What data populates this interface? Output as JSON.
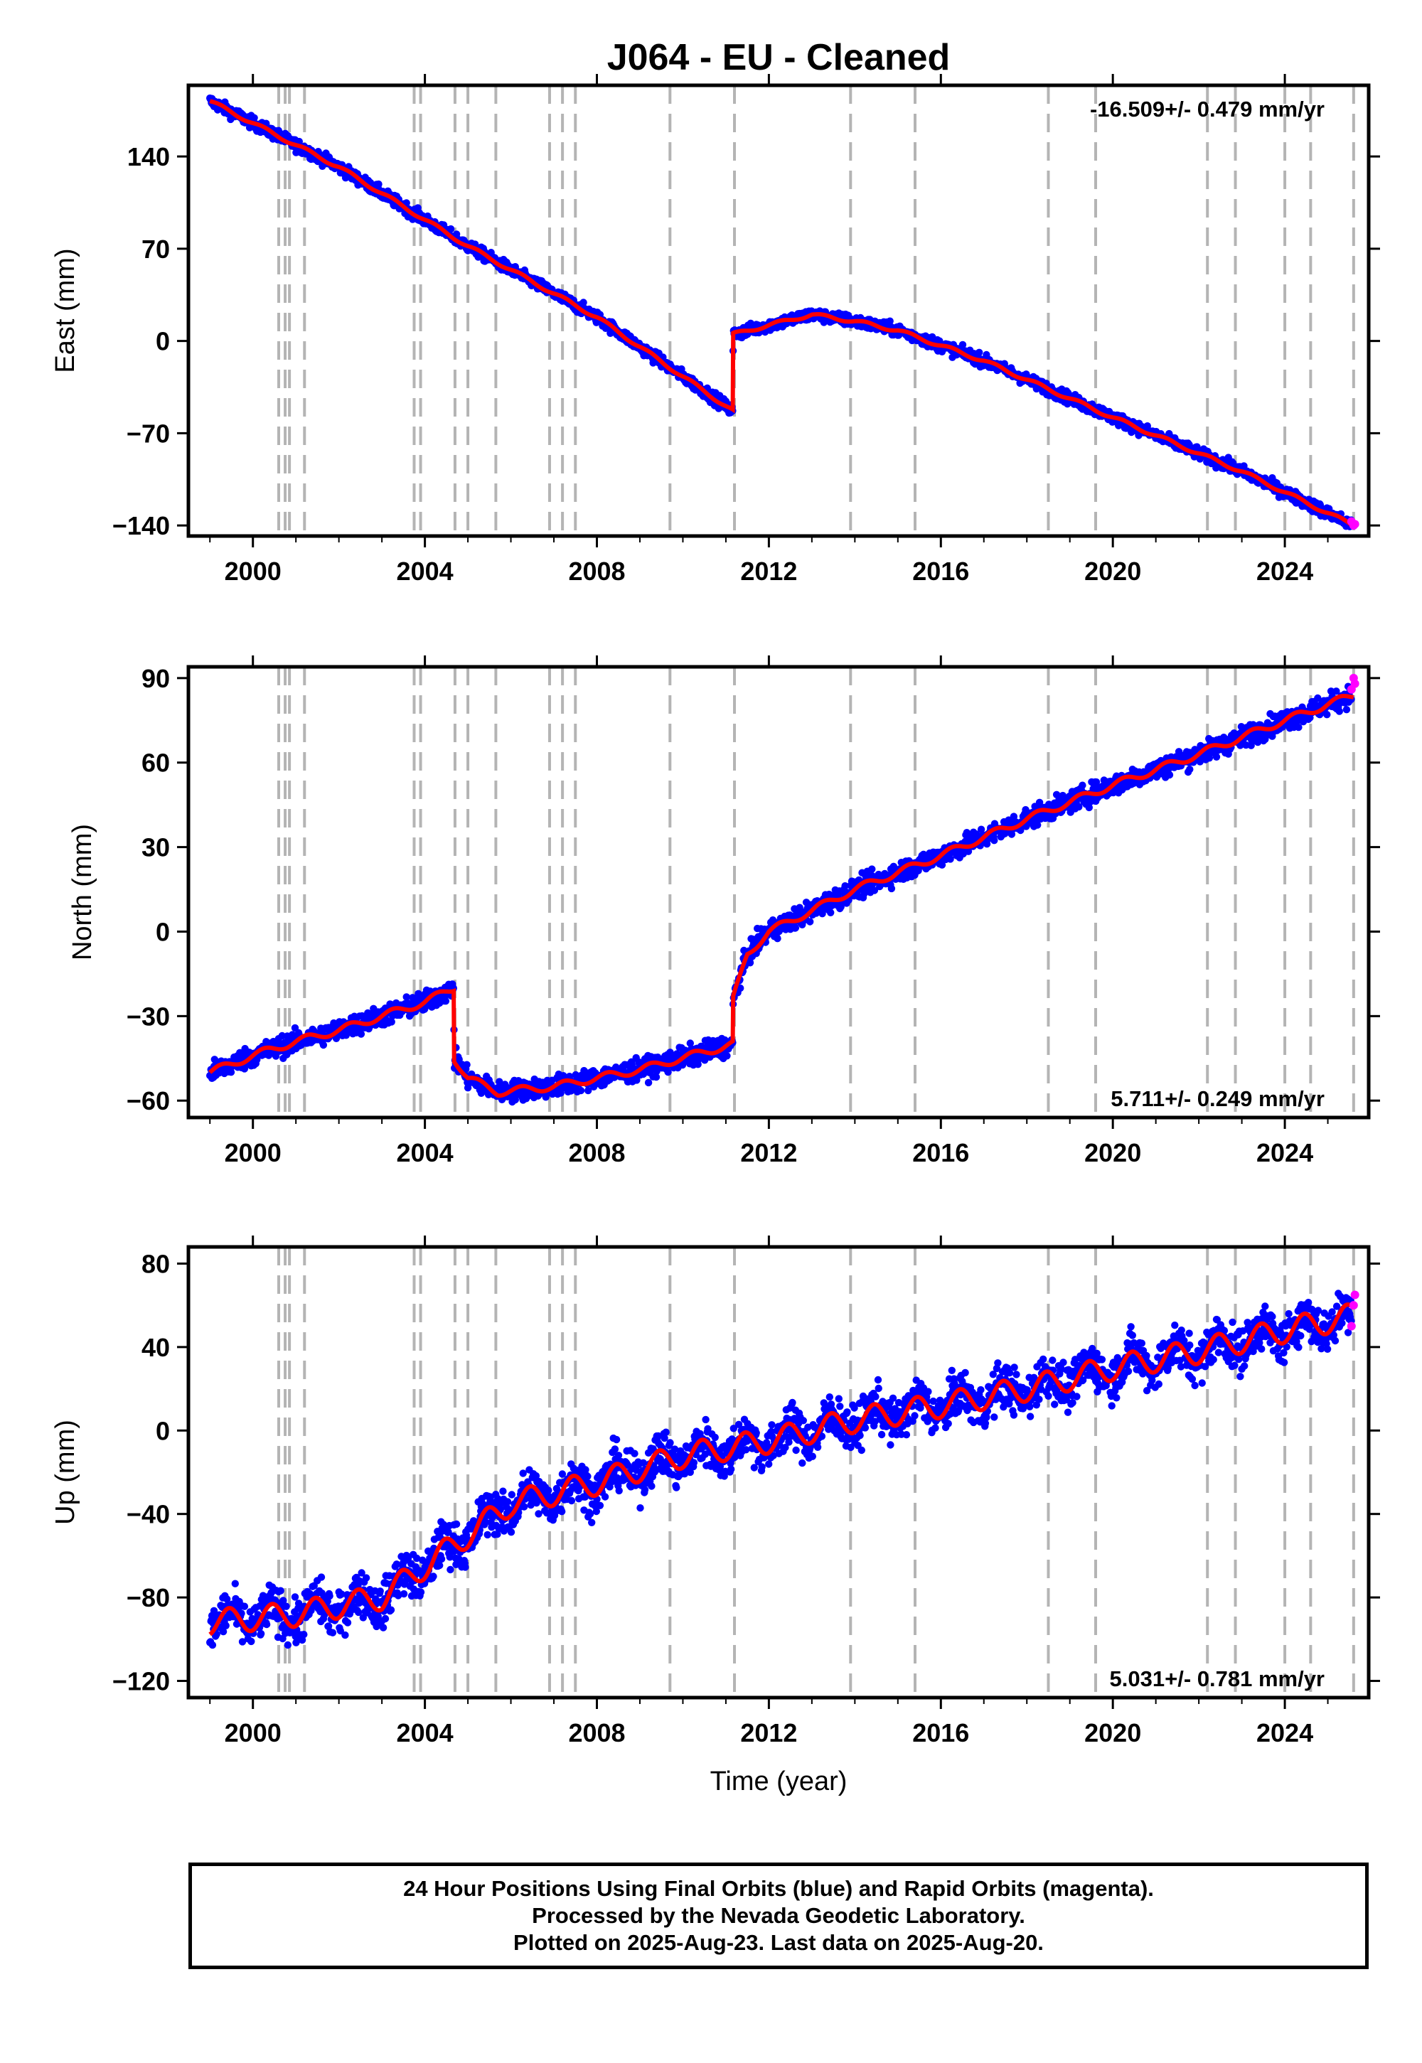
{
  "title": "J064  - EU - Cleaned",
  "footer": {
    "line1": "24 Hour Positions Using Final Orbits (blue) and Rapid Orbits (magenta).",
    "line2": "Processed by the Nevada Geodetic Laboratory.",
    "line3": "Plotted on 2025-Aug-23. Last data on 2025-Aug-20."
  },
  "colors": {
    "final_points": "#0000ff",
    "rapid_points": "#ff00ff",
    "model": "#ff0000",
    "event_lines": "#b4b4b4"
  },
  "chart_data": [
    {
      "type": "scatter",
      "panel": "east",
      "ylabel": "East (mm)",
      "xlabel": "",
      "xlim": [
        1998.5,
        2025.95
      ],
      "ylim": [
        -148,
        194
      ],
      "xticks": [
        "2000",
        "2004",
        "2008",
        "2012",
        "2016",
        "2020",
        "2024"
      ],
      "yticks": [
        "140",
        "70",
        "0",
        "−70",
        "−140"
      ],
      "rate": "-16.509+/- 0.479 mm/yr",
      "rate_position": "top-right",
      "series_model": {
        "x": [
          1999.0,
          2002.0,
          2005.0,
          2008.0,
          2011.16,
          2011.17,
          2012.0,
          2013.0,
          2014.0,
          2015.0,
          2017.0,
          2020.0,
          2023.0,
          2025.6
        ],
        "y": [
          182,
          132,
          72,
          18,
          -53,
          5,
          12,
          20,
          15,
          8,
          -15,
          -58,
          -99,
          -140
        ]
      },
      "rapid_points": {
        "x": [
          2025.55,
          2025.6,
          2025.63
        ],
        "y": [
          -137,
          -140,
          -139
        ]
      }
    },
    {
      "type": "scatter",
      "panel": "north",
      "ylabel": "North (mm)",
      "xlabel": "",
      "xlim": [
        1998.5,
        2025.95
      ],
      "ylim": [
        -66,
        94
      ],
      "xticks": [
        "2000",
        "2004",
        "2008",
        "2012",
        "2016",
        "2020",
        "2024"
      ],
      "yticks": [
        "90",
        "60",
        "30",
        "0",
        "−30",
        "−60"
      ],
      "rate": "5.711+/- 0.249 mm/yr",
      "rate_position": "bottom-right",
      "series_model": {
        "x": [
          1999.0,
          2000.0,
          2001.0,
          2002.0,
          2003.0,
          2004.0,
          2004.67,
          2004.68,
          2005.0,
          2005.7,
          2007.0,
          2009.0,
          2011.16,
          2011.17,
          2011.5,
          2012.0,
          2014.0,
          2016.0,
          2018.0,
          2020.0,
          2022.0,
          2024.0,
          2025.6
        ],
        "y": [
          -50,
          -44,
          -39,
          -35,
          -30,
          -25,
          -20,
          -45,
          -52,
          -57,
          -55,
          -49,
          -40,
          -24,
          -8,
          0,
          15,
          27,
          40,
          52,
          63,
          75,
          84
        ]
      },
      "rapid_points": {
        "x": [
          2025.55,
          2025.6,
          2025.63
        ],
        "y": [
          86,
          90,
          88
        ]
      }
    },
    {
      "type": "scatter",
      "panel": "up",
      "ylabel": "Up (mm)",
      "xlabel": "Time (year)",
      "xlim": [
        1998.5,
        2025.95
      ],
      "ylim": [
        -128,
        88
      ],
      "xticks": [
        "2000",
        "2004",
        "2008",
        "2012",
        "2016",
        "2020",
        "2024"
      ],
      "yticks": [
        "80",
        "40",
        "0",
        "−40",
        "−80",
        "−120"
      ],
      "rate": "5.031+/- 0.781 mm/yr",
      "rate_position": "bottom-right",
      "series_model": {
        "x": [
          1999.0,
          2001.0,
          2003.0,
          2004.0,
          2005.0,
          2006.0,
          2008.0,
          2010.0,
          2012.0,
          2014.0,
          2016.0,
          2018.0,
          2020.0,
          2022.0,
          2024.0,
          2025.6
        ],
        "y": [
          -92,
          -88,
          -80,
          -65,
          -50,
          -35,
          -25,
          -12,
          -5,
          5,
          12,
          20,
          30,
          38,
          48,
          55
        ]
      },
      "rapid_points": {
        "x": [
          2025.55,
          2025.6,
          2025.63
        ],
        "y": [
          50,
          60,
          65
        ]
      }
    }
  ],
  "event_lines_years": [
    2000.6,
    2000.75,
    2000.85,
    2001.2,
    2003.75,
    2003.9,
    2004.7,
    2005.0,
    2005.65,
    2006.9,
    2007.2,
    2007.5,
    2009.7,
    2011.2,
    2013.9,
    2015.4,
    2018.5,
    2019.6,
    2022.2,
    2022.85,
    2024.0,
    2024.6,
    2025.6
  ]
}
